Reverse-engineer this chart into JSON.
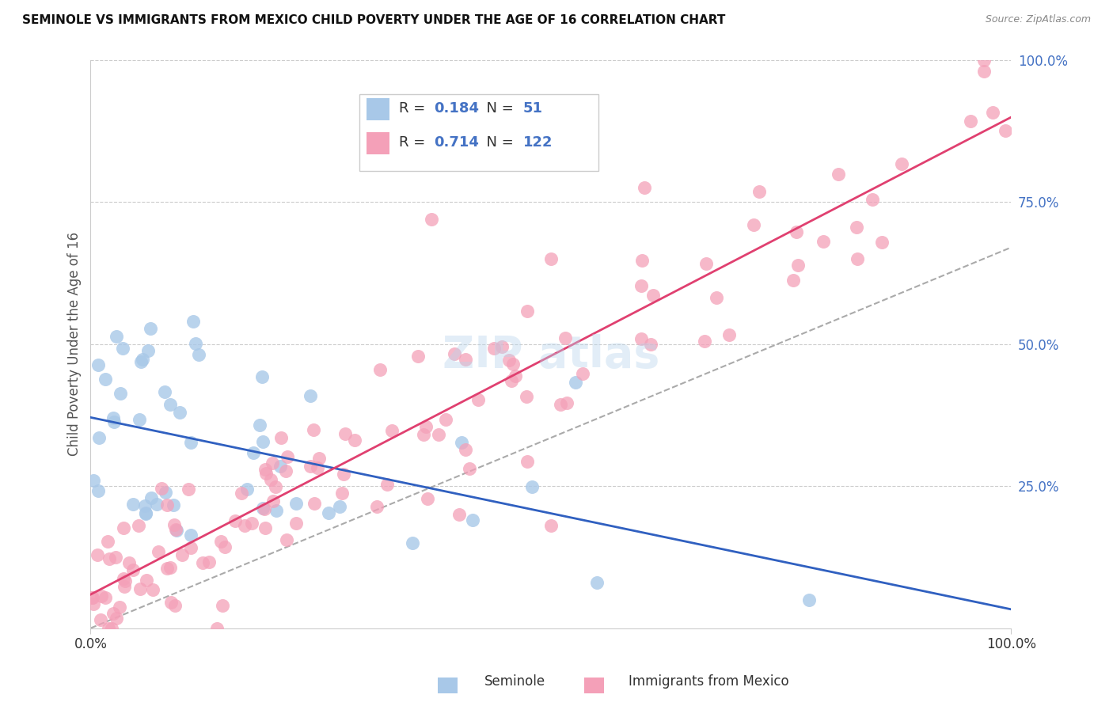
{
  "title": "SEMINOLE VS IMMIGRANTS FROM MEXICO CHILD POVERTY UNDER THE AGE OF 16 CORRELATION CHART",
  "source": "Source: ZipAtlas.com",
  "ylabel": "Child Poverty Under the Age of 16",
  "xmin": 0.0,
  "xmax": 1.0,
  "ymin": 0.0,
  "ymax": 1.0,
  "legend_label1": "Seminole",
  "legend_label2": "Immigrants from Mexico",
  "legend_R1": "0.184",
  "legend_N1": "51",
  "legend_R2": "0.714",
  "legend_N2": "122",
  "color_blue_scatter": "#A8C8E8",
  "color_pink_scatter": "#F4A0B8",
  "color_blue_line": "#3060C0",
  "color_pink_line": "#E04070",
  "color_dashed_line": "#AAAAAA",
  "color_grid": "#CCCCCC",
  "color_legend_R_val": "#4472C4",
  "color_legend_N_val": "#4472C4",
  "color_legend_text": "#333333",
  "background_color": "#FFFFFF",
  "watermark_color": "#B8D4EC",
  "watermark_alpha": 0.4
}
